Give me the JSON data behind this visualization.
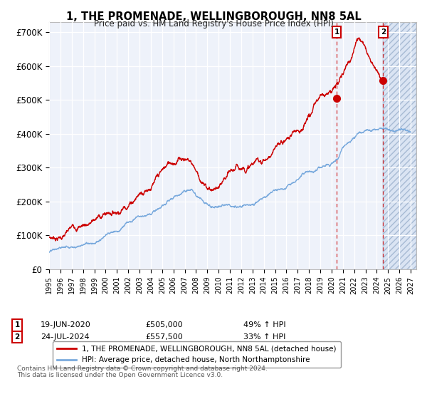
{
  "title": "1, THE PROMENADE, WELLINGBOROUGH, NN8 5AL",
  "subtitle": "Price paid vs. HM Land Registry's House Price Index (HPI)",
  "ylabel_ticks": [
    "£0",
    "£100K",
    "£200K",
    "£300K",
    "£400K",
    "£500K",
    "£600K",
    "£700K"
  ],
  "ytick_values": [
    0,
    100000,
    200000,
    300000,
    400000,
    500000,
    600000,
    700000
  ],
  "ylim": [
    0,
    730000
  ],
  "xlim_start": 1995.0,
  "xlim_end": 2027.5,
  "red_color": "#cc0000",
  "blue_color": "#7aaadd",
  "hatch_color": "#c8d8ee",
  "bg_color": "#eef2fa",
  "transaction1": {
    "label": "1",
    "date": "19-JUN-2020",
    "price": "£505,000",
    "hpi": "49% ↑ HPI",
    "year": 2020.46,
    "value": 505000
  },
  "transaction2": {
    "label": "2",
    "date": "24-JUL-2024",
    "price": "£557,500",
    "hpi": "33% ↑ HPI",
    "year": 2024.56,
    "value": 557500
  },
  "legend_line1": "1, THE PROMENADE, WELLINGBOROUGH, NN8 5AL (detached house)",
  "legend_line2": "HPI: Average price, detached house, North Northamptonshire",
  "footer1": "Contains HM Land Registry data © Crown copyright and database right 2024.",
  "footer2": "This data is licensed under the Open Government Licence v3.0."
}
